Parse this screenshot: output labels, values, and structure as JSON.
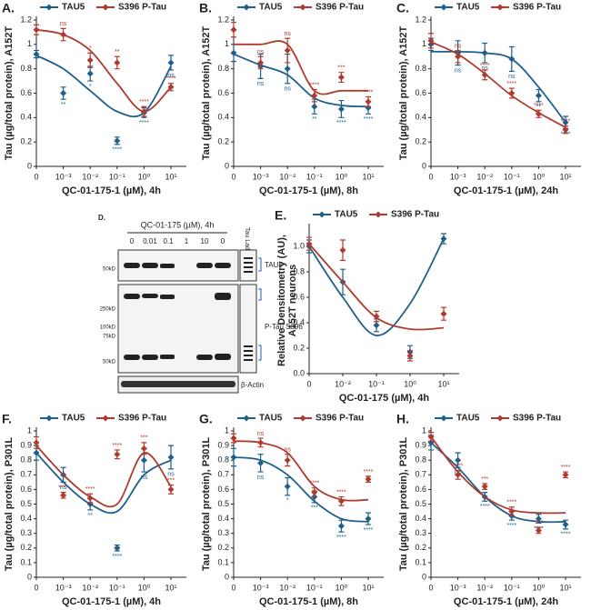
{
  "chart_data": [
    {
      "type": "line",
      "label": "A.",
      "ylabel": [
        "Tau (µg/total protein), A152T"
      ],
      "xlabel": "QC-01-175-1 (µM), 4h",
      "categories": [
        "0",
        "10⁻³",
        "10⁻²",
        "10⁻¹",
        "10⁰",
        "10¹"
      ],
      "ylim": [
        0,
        1.2
      ],
      "yticks": [
        0,
        0.2,
        0.4,
        0.6,
        0.8,
        1,
        1.2
      ],
      "series": [
        {
          "name": "TAU5",
          "color": "#1f5f8b",
          "values": [
            0.92,
            0.6,
            0.76,
            0.21,
            0.44,
            0.85
          ],
          "errors": [
            0.03,
            0.05,
            0.06,
            0.03,
            0.04,
            0.06
          ],
          "fit": [
            0.91,
            0.8,
            0.62,
            0.45,
            0.44,
            0.82
          ],
          "sig": [
            null,
            "**",
            "*",
            "****",
            "****",
            "ns"
          ]
        },
        {
          "name": "S396 P-Tau",
          "color": "#b03a2e",
          "values": [
            1.12,
            1.08,
            0.87,
            0.85,
            0.45,
            0.65
          ],
          "errors": [
            0.04,
            0.05,
            0.06,
            0.05,
            0.04,
            0.03
          ],
          "fit": [
            1.12,
            1.08,
            0.95,
            0.68,
            0.45,
            0.65
          ],
          "sig": [
            null,
            "ns",
            "*",
            "**",
            "****",
            "****"
          ]
        }
      ]
    },
    {
      "type": "line",
      "label": "B.",
      "ylabel": [
        "Tau (µg/total protein), A152T"
      ],
      "xlabel": "QC-01-175-1 (µM), 8h",
      "categories": [
        "0",
        "10⁻³",
        "10⁻²",
        "10⁻¹",
        "10⁰",
        "10¹"
      ],
      "ylim": [
        0,
        1.2
      ],
      "yticks": [
        0,
        0.2,
        0.4,
        0.6,
        0.8,
        1,
        1.2
      ],
      "series": [
        {
          "name": "TAU5",
          "color": "#1f5f8b",
          "values": [
            0.93,
            0.82,
            0.8,
            0.49,
            0.47,
            0.48
          ],
          "errors": [
            0.07,
            0.1,
            0.12,
            0.06,
            0.07,
            0.05
          ],
          "fit": [
            0.92,
            0.83,
            0.75,
            0.56,
            0.5,
            0.49
          ],
          "sig": [
            null,
            "ns",
            "ns",
            "**",
            "****",
            "****"
          ]
        },
        {
          "name": "S396 P-Tau",
          "color": "#b03a2e",
          "values": [
            1.12,
            0.85,
            0.95,
            0.58,
            0.73,
            0.53
          ],
          "errors": [
            0.06,
            0.05,
            0.1,
            0.05,
            0.04,
            0.04
          ],
          "fit": [
            1,
            1,
            1,
            0.62,
            0.62,
            0.62
          ],
          "sig": [
            null,
            "ns",
            "ns",
            "****",
            "***",
            "****"
          ]
        }
      ]
    },
    {
      "type": "line",
      "label": "C.",
      "ylabel": [
        "Tau (µg/total protein), A152T"
      ],
      "xlabel": "QC-01-175-1 (µM), 24h",
      "categories": [
        "0",
        "10⁻³",
        "10⁻²",
        "10⁻¹",
        "10⁰",
        "10¹"
      ],
      "ylim": [
        0,
        1.2
      ],
      "yticks": [
        0,
        0.2,
        0.4,
        0.6,
        0.8,
        1,
        1.2
      ],
      "series": [
        {
          "name": "TAU5",
          "color": "#1f5f8b",
          "values": [
            1,
            0.93,
            0.93,
            0.88,
            0.58,
            0.36
          ],
          "errors": [
            0.05,
            0.1,
            0.08,
            0.1,
            0.05,
            0.05
          ],
          "fit": [
            0.94,
            0.94,
            0.93,
            0.88,
            0.65,
            0.36
          ],
          "sig": [
            null,
            "ns",
            "ns",
            "ns",
            "**",
            "****"
          ]
        },
        {
          "name": "S396 P-Tau",
          "color": "#b03a2e",
          "values": [
            1.03,
            0.9,
            0.75,
            0.6,
            0.43,
            0.3
          ],
          "errors": [
            0.06,
            0.05,
            0.04,
            0.04,
            0.03,
            0.03
          ],
          "fit": [
            1.02,
            0.92,
            0.76,
            0.58,
            0.44,
            0.32
          ],
          "sig": [
            null,
            "ns",
            "****",
            "****",
            "****",
            "****"
          ]
        }
      ]
    },
    {
      "type": "line",
      "label": "E.",
      "ylabel": [
        "Relative Densitometry (AU),",
        "A152T neurons"
      ],
      "xlabel": "QC-01-175 (µM), 4h",
      "categories": [
        "0",
        "10⁻²",
        "10⁻¹",
        "10⁰",
        "10¹"
      ],
      "ylim": [
        0,
        1.15
      ],
      "yticks": [
        {
          "value": 0,
          "label": "0.0"
        },
        0.2,
        0.4,
        0.6,
        0.8,
        {
          "value": 1,
          "label": "1.0"
        }
      ],
      "series": [
        {
          "name": "TAU5",
          "color": "#1f5f8b",
          "values": [
            1,
            0.72,
            0.38,
            0.17,
            1.06
          ],
          "errors": [
            0.05,
            0.1,
            0.05,
            0.05,
            0.04
          ],
          "fit": [
            1,
            0.6,
            0.3,
            0.55,
            1.06
          ]
        },
        {
          "name": "S396 P-Tau",
          "color": "#b03a2e",
          "values": [
            1.02,
            0.97,
            0.45,
            0.14,
            0.47
          ],
          "errors": [
            0.05,
            0.08,
            0.04,
            0.04,
            0.05
          ],
          "fit": [
            1.02,
            0.72,
            0.44,
            0.35,
            0.36
          ]
        }
      ]
    },
    {
      "type": "line",
      "label": "F.",
      "ylabel": [
        "Tau (µg/total protein), P301L"
      ],
      "xlabel": "QC-01-175-1 (µM), 4h",
      "categories": [
        "0",
        "10⁻³",
        "10⁻²",
        "10⁻¹",
        "10⁰",
        "10¹"
      ],
      "ylim": [
        0,
        1
      ],
      "yticks": [
        0,
        0.1,
        0.2,
        0.3,
        0.4,
        0.5,
        0.6,
        0.7,
        0.8,
        0.9,
        1
      ],
      "series": [
        {
          "name": "TAU5",
          "color": "#1f5f8b",
          "values": [
            0.85,
            0.7,
            0.5,
            0.2,
            0.8,
            0.82
          ],
          "errors": [
            0.05,
            0.05,
            0.04,
            0.02,
            0.08,
            0.08
          ],
          "fit": [
            0.85,
            0.65,
            0.5,
            0.45,
            0.7,
            0.8
          ],
          "sig": [
            null,
            "ns",
            "**",
            "****",
            "ns",
            "ns"
          ]
        },
        {
          "name": "S396 P-Tau",
          "color": "#b03a2e",
          "values": [
            0.92,
            0.56,
            0.54,
            0.84,
            0.88,
            0.6
          ],
          "errors": [
            0.04,
            0.02,
            0.03,
            0.03,
            0.04,
            0.03
          ],
          "fit": [
            0.9,
            0.7,
            0.55,
            0.5,
            0.85,
            0.62
          ],
          "sig": [
            null,
            "****",
            "****",
            "****",
            "***",
            "***"
          ]
        }
      ]
    },
    {
      "type": "line",
      "label": "G.",
      "ylabel": [
        "Tau (µg/total protein), P301L"
      ],
      "xlabel": "QC-01-175-1 (µM), 8h",
      "categories": [
        "0",
        "10⁻³",
        "10⁻²",
        "10⁻¹",
        "10⁰",
        "10¹"
      ],
      "ylim": [
        0,
        1
      ],
      "yticks": [
        0,
        0.1,
        0.2,
        0.3,
        0.4,
        0.5,
        0.6,
        0.7,
        0.8,
        0.9,
        1
      ],
      "series": [
        {
          "name": "TAU5",
          "color": "#1f5f8b",
          "values": [
            0.82,
            0.78,
            0.62,
            0.55,
            0.35,
            0.4
          ],
          "errors": [
            0.06,
            0.06,
            0.06,
            0.04,
            0.04,
            0.04
          ],
          "fit": [
            0.82,
            0.8,
            0.7,
            0.52,
            0.4,
            0.38
          ],
          "sig": [
            null,
            "ns",
            "*",
            "***",
            "****",
            "****"
          ]
        },
        {
          "name": "S396 P-Tau",
          "color": "#b03a2e",
          "values": [
            0.95,
            0.92,
            0.8,
            0.58,
            0.52,
            0.67
          ],
          "errors": [
            0.03,
            0.03,
            0.04,
            0.03,
            0.03,
            0.02
          ],
          "fit": [
            0.93,
            0.92,
            0.85,
            0.62,
            0.53,
            0.53
          ],
          "sig": [
            null,
            "ns",
            "ns",
            "****",
            "****",
            "****"
          ]
        }
      ]
    },
    {
      "type": "line",
      "label": "H.",
      "ylabel": [
        "Tau (µg/total protein), P301L"
      ],
      "xlabel": "QC-01-175-1 (µM), 24h",
      "categories": [
        "0",
        "10⁻³",
        "10⁻²",
        "10⁻¹",
        "10⁰",
        "10¹"
      ],
      "ylim": [
        0,
        1
      ],
      "yticks": [
        0,
        0.1,
        0.2,
        0.3,
        0.4,
        0.5,
        0.6,
        0.7,
        0.8,
        0.9,
        1
      ],
      "series": [
        {
          "name": "TAU5",
          "color": "#1f5f8b",
          "values": [
            0.92,
            0.8,
            0.55,
            0.42,
            0.4,
            0.36
          ],
          "errors": [
            0.05,
            0.05,
            0.03,
            0.03,
            0.03,
            0.03
          ],
          "fit": [
            0.92,
            0.75,
            0.55,
            0.42,
            0.38,
            0.38
          ],
          "sig": [
            null,
            "ns",
            "****",
            "****",
            "****",
            "****"
          ]
        },
        {
          "name": "S396 P-Tau",
          "color": "#b03a2e",
          "values": [
            0.96,
            0.7,
            0.62,
            0.45,
            0.32,
            0.7
          ],
          "errors": [
            0.03,
            0.03,
            0.02,
            0.03,
            0.02,
            0.02
          ],
          "fit": [
            0.96,
            0.72,
            0.55,
            0.46,
            0.44,
            0.44
          ],
          "sig": [
            null,
            "****",
            "***",
            "****",
            "****",
            "****"
          ]
        }
      ]
    }
  ],
  "blot": {
    "label": "D.",
    "title": "QC-01-175 (µM), 4h",
    "lanes": [
      "0",
      "0.01",
      "0.1",
      "1",
      "10",
      "0"
    ],
    "ladder": "Tau Ladder",
    "markers_top": [
      "50kD"
    ],
    "markers_mid": [
      "250kD",
      "100kD",
      "75kD",
      "50kD"
    ],
    "bands": [
      "TAU5",
      "P-Tau S396",
      "β-Actin"
    ]
  }
}
